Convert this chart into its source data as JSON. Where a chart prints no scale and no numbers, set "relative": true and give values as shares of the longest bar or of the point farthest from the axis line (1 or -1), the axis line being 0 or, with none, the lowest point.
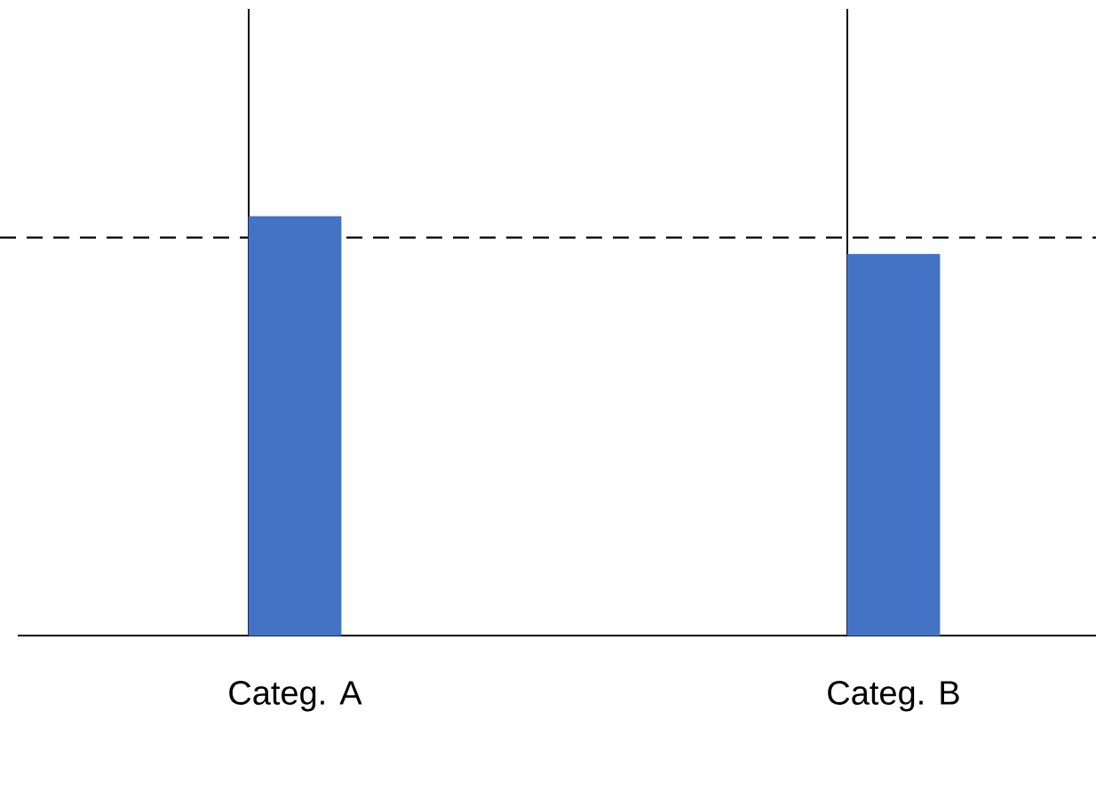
{
  "chart_data": {
    "type": "bar",
    "relative": true,
    "categories": [
      "Categ. A",
      "Categ. B"
    ],
    "values": [
      1,
      0.91
    ],
    "color": "#4472c4",
    "ref_lines": [
      {
        "axis": "y",
        "value": 0.95,
        "line_style": "dashed",
        "color": "#000000"
      },
      {
        "axis": "x",
        "value": "Categ. A",
        "line_style": "solid",
        "color": "#000000"
      },
      {
        "axis": "x",
        "value": "Categ. B",
        "line_style": "solid",
        "color": "#000000"
      }
    ]
  }
}
